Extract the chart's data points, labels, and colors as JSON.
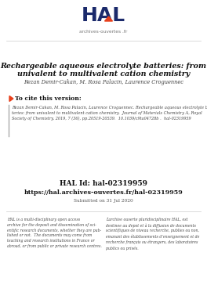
{
  "bg_color": "#ffffff",
  "title_line1": "Rechargeable aqueous electrolyte batteries: from",
  "title_line2": "univalent to multivalent cation chemistry",
  "authors": "Rezan Demir-Cakan, M. Rosa Palacin, Laurence Croguennec",
  "cite_header": "To cite this version:",
  "citation_text": "Rezan Demir-Cakan, M. Rosa Palacin, Laurence Croguennec. Rechargeable aqueous electrolyte bat-\nteries: from univalent to multivalent cation chemistry.  Journal of Materials Chemistry A, Royal\nSociety of Chemistry, 2019, 7 (36), pp.20519-20539.  10.1039/c9ta04728b .  hal-02319959",
  "hal_id_label": "HAL Id: hal-02319959",
  "hal_url": "https://hal.archives-ouvertes.fr/hal-02319959",
  "submitted": "Submitted on 31 Jul 2020",
  "left_text": "HAL is a multi-disciplinary open access\narchive for the deposit and dissemination of sci-\nentific research documents, whether they are pub-\nlished or not.  The documents may come from\nteaching and research institutions in France or\nabroad, or from public or private research centres.",
  "right_text": "L’archive ouverte pluridisciplinaire HAL, est\ndestinee au depot et à la diffusion de documents\nscientifiques de niveau recherche, publies ou non,\nemanant des établissements d’enseignement et de\nrecherche français ou étrangers, des laboratoires\npublics ou privés.",
  "navy": "#1b2a6b",
  "orange": "#e8401c",
  "gray_line": "#cccccc",
  "citation_border": "#aaaaaa",
  "text_dark": "#111111",
  "text_gray": "#444444",
  "text_small": "#555555",
  "logo_hal": "HAL",
  "logo_sub": "archives-ouvertes .fr"
}
